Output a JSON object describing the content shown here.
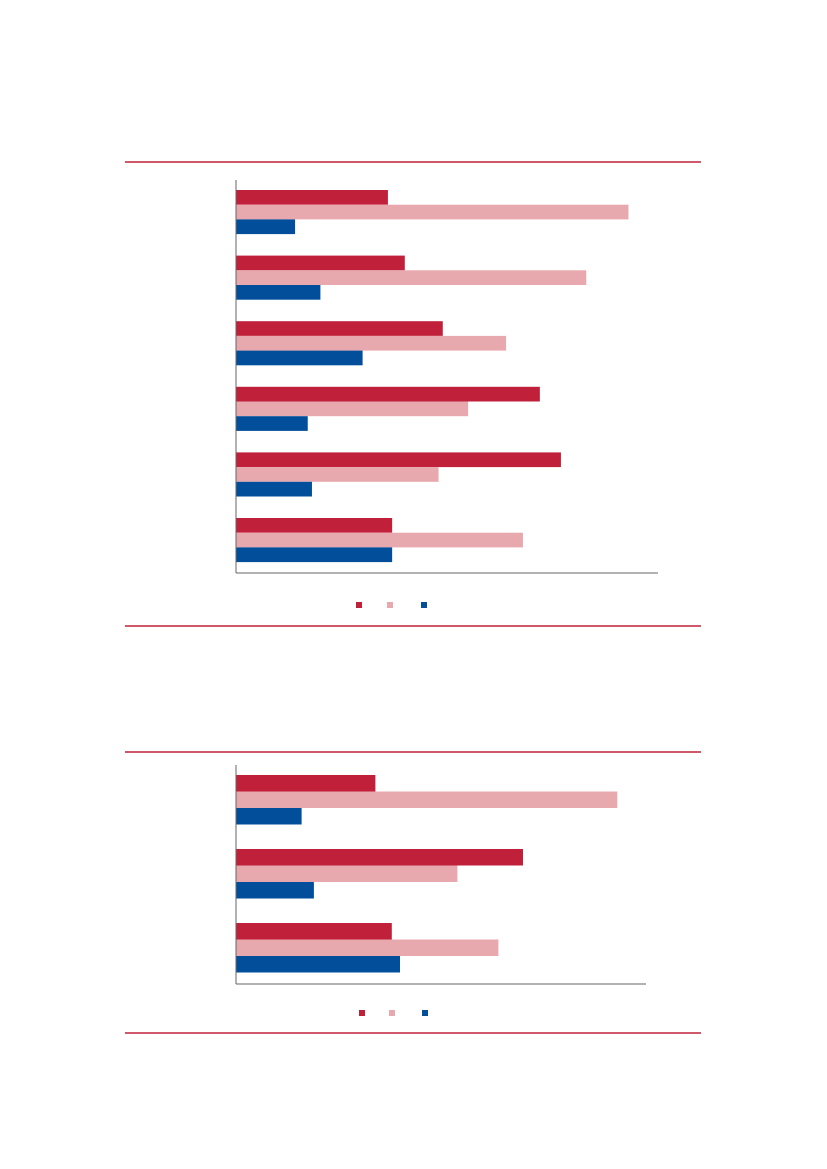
{
  "chart_data": [
    {
      "type": "bar",
      "orientation": "horizontal",
      "categories": [
        null,
        null,
        null,
        null,
        null,
        null
      ],
      "xlim": [
        0,
        100
      ],
      "series": [
        {
          "color": "#c0203a",
          "values": [
            36,
            40,
            49,
            72,
            77,
            37
          ]
        },
        {
          "color": "#e8a9ae",
          "values": [
            93,
            83,
            64,
            55,
            48,
            68
          ]
        },
        {
          "color": "#034e9b",
          "values": [
            14,
            20,
            30,
            17,
            18,
            37
          ]
        }
      ]
    },
    {
      "type": "bar",
      "orientation": "horizontal",
      "categories": [
        null,
        null,
        null
      ],
      "xlim": [
        0,
        100
      ],
      "series": [
        {
          "color": "#c0203a",
          "values": [
            34,
            70,
            38
          ]
        },
        {
          "color": "#e8a9ae",
          "values": [
            93,
            54,
            64
          ]
        },
        {
          "color": "#034e9b",
          "values": [
            16,
            19,
            40
          ]
        }
      ]
    }
  ]
}
